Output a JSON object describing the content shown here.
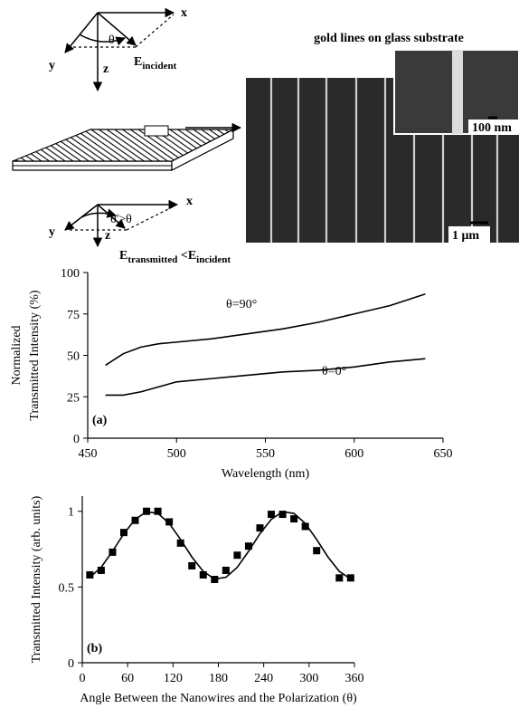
{
  "diagram": {
    "top_axes": {
      "x": "x",
      "y": "y",
      "z": "z",
      "angle": "θ",
      "field": "E",
      "field_sub": "incident"
    },
    "bottom_axes": {
      "x": "x",
      "y": "y",
      "z": "z",
      "angle": "θ'>θ",
      "field": "E",
      "field_sub": "transmitted",
      "compare": " <E",
      "compare_sub": "incident"
    },
    "micrograph": {
      "title": "gold lines on glass substrate",
      "inset_scale": "100 nm",
      "scale": "1 μm"
    }
  },
  "chart_data": [
    {
      "type": "line",
      "panel": "(a)",
      "xlabel": "Wavelength (nm)",
      "ylabel": [
        "Normalized",
        "Transmitted Intensity (%)"
      ],
      "x": [
        460,
        470,
        480,
        490,
        500,
        520,
        540,
        560,
        580,
        600,
        620,
        640
      ],
      "series": [
        {
          "name": "θ=90°",
          "color": "#000000",
          "style": "line",
          "values": [
            44,
            51,
            55,
            57,
            58,
            60,
            63,
            66,
            70,
            75,
            80,
            87
          ]
        },
        {
          "name": "θ=0°",
          "color": "#000000",
          "style": "line",
          "values": [
            26,
            26,
            28,
            31,
            34,
            36,
            38,
            40,
            41,
            43,
            46,
            48
          ]
        }
      ],
      "xlim": [
        450,
        650
      ],
      "xticks": [
        450,
        500,
        550,
        600,
        650
      ],
      "ylim": [
        0,
        100
      ],
      "yticks": [
        0,
        25,
        50,
        75,
        100
      ],
      "grid": false
    },
    {
      "type": "scatter",
      "panel": "(b)",
      "xlabel": "Angle Between the Nanowires and the Polarization (θ)",
      "ylabel": [
        "Transmitted Intensity (arb. units)"
      ],
      "series": [
        {
          "style": "markers",
          "color": "#000000",
          "x": [
            10,
            25,
            40,
            55,
            70,
            85,
            100,
            115,
            130,
            145,
            160,
            175,
            190,
            205,
            220,
            235,
            250,
            265,
            280,
            295,
            310,
            340,
            355
          ],
          "values": [
            0.58,
            0.61,
            0.73,
            0.86,
            0.94,
            1.0,
            1.0,
            0.93,
            0.79,
            0.64,
            0.58,
            0.55,
            0.61,
            0.71,
            0.77,
            0.89,
            0.98,
            0.98,
            0.95,
            0.9,
            0.74,
            0.56,
            0.56
          ]
        },
        {
          "style": "line",
          "color": "#000000",
          "x": [
            10,
            25,
            40,
            55,
            70,
            85,
            100,
            115,
            130,
            145,
            160,
            175,
            190,
            205,
            220,
            235,
            250,
            265,
            280,
            295,
            310,
            325,
            340,
            355
          ],
          "values": [
            0.564,
            0.63,
            0.736,
            0.852,
            0.947,
            0.997,
            0.986,
            0.92,
            0.814,
            0.698,
            0.603,
            0.553,
            0.564,
            0.63,
            0.736,
            0.852,
            0.947,
            0.997,
            0.986,
            0.92,
            0.814,
            0.698,
            0.603,
            0.553
          ]
        }
      ],
      "xlim": [
        0,
        360
      ],
      "xticks": [
        0,
        60,
        120,
        180,
        240,
        300,
        360
      ],
      "ylim": [
        0,
        1.1
      ],
      "yticks": [
        0,
        0.5,
        1
      ],
      "grid": false
    }
  ]
}
